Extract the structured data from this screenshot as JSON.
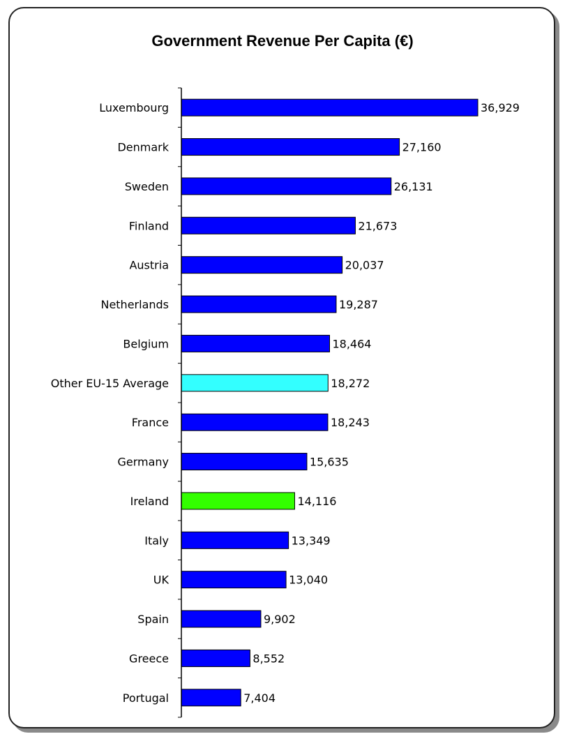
{
  "chart_data": {
    "type": "bar",
    "orientation": "horizontal",
    "title": "Government Revenue Per Capita (€)",
    "xlabel": "",
    "ylabel": "",
    "xlim": [
      0,
      40000
    ],
    "grid": false,
    "legend": "none",
    "categories": [
      "Luxembourg",
      "Denmark",
      "Sweden",
      "Finland",
      "Austria",
      "Netherlands",
      "Belgium",
      "Other EU-15 Average",
      "France",
      "Germany",
      "Ireland",
      "Italy",
      "UK",
      "Spain",
      "Greece",
      "Portugal"
    ],
    "values": [
      36929,
      27160,
      26131,
      21673,
      20037,
      19287,
      18464,
      18272,
      18243,
      15635,
      14116,
      13349,
      13040,
      9902,
      8552,
      7404
    ],
    "value_labels": [
      "36,929",
      "27,160",
      "26,131",
      "21,673",
      "20,037",
      "19,287",
      "18,464",
      "18,272",
      "18,243",
      "15,635",
      "14,116",
      "13,349",
      "13,040",
      "9,902",
      "8,552",
      "7,404"
    ],
    "bar_colors": [
      "#0000ff",
      "#0000ff",
      "#0000ff",
      "#0000ff",
      "#0000ff",
      "#0000ff",
      "#0000ff",
      "#33ffff",
      "#0000ff",
      "#0000ff",
      "#33ff00",
      "#0000ff",
      "#0000ff",
      "#0000ff",
      "#0000ff",
      "#0000ff"
    ]
  }
}
